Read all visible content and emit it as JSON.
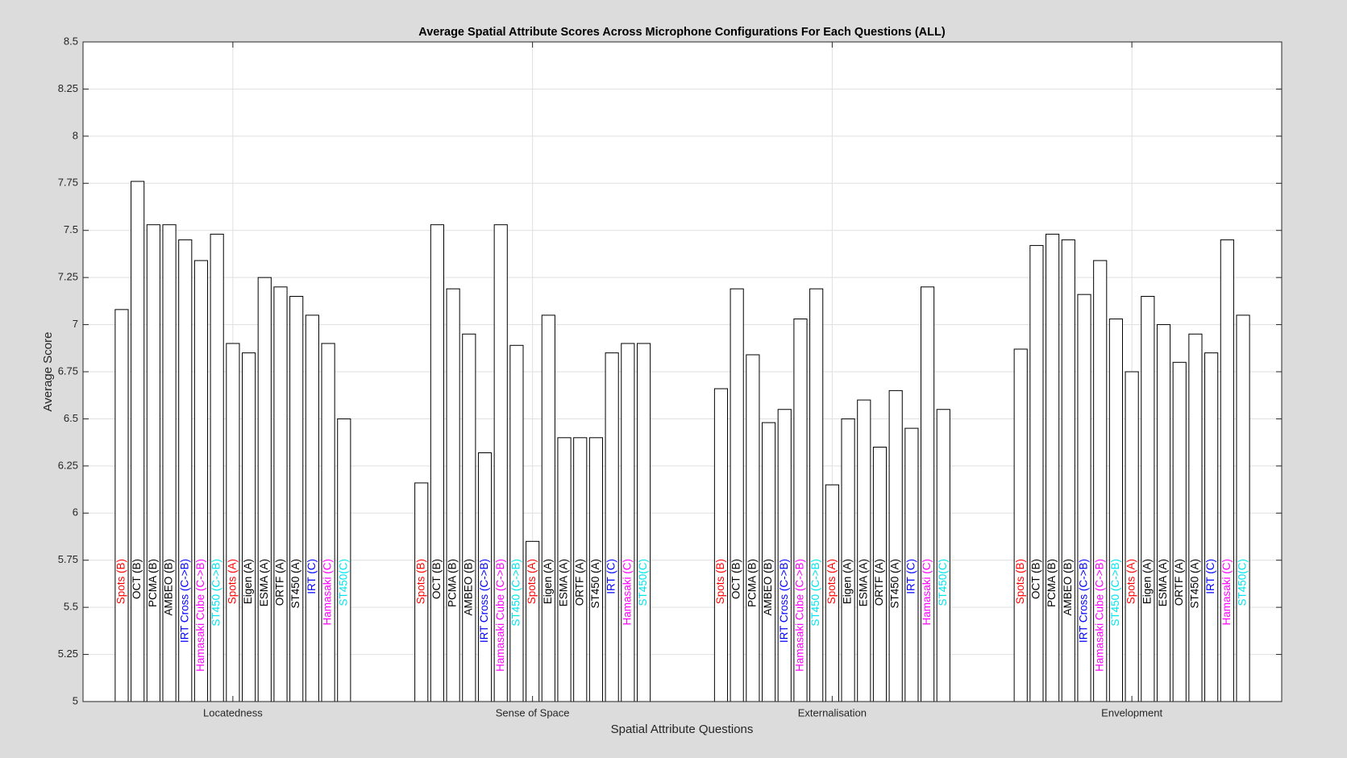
{
  "chart_data": {
    "type": "bar",
    "title": "Average Spatial Attribute Scores Across Microphone Configurations For Each Questions (ALL)",
    "x_label": "Spatial Attribute Questions",
    "y_label": "Average Score",
    "categories": [
      "Locatedness",
      "Sense of Space",
      "Externalisation",
      "Envelopment"
    ],
    "ylim": [
      5,
      8.5
    ],
    "yticks": [
      5,
      5.25,
      5.5,
      5.75,
      6,
      6.25,
      6.5,
      6.75,
      7,
      7.25,
      7.5,
      7.75,
      8,
      8.25,
      8.5
    ],
    "grid": true,
    "series": [
      {
        "name": "Spots (B)",
        "color": "#ff0000",
        "values": [
          7.08,
          6.16,
          6.66,
          6.87
        ]
      },
      {
        "name": "OCT (B)",
        "color": "#000000",
        "values": [
          7.76,
          7.53,
          7.19,
          7.42
        ]
      },
      {
        "name": "PCMA (B)",
        "color": "#000000",
        "values": [
          7.53,
          7.19,
          6.84,
          7.48
        ]
      },
      {
        "name": "AMBEO (B)",
        "color": "#000000",
        "values": [
          7.53,
          6.95,
          6.48,
          7.45
        ]
      },
      {
        "name": "IRT Cross (C->B)",
        "color": "#0000ff",
        "values": [
          7.45,
          6.32,
          6.55,
          7.16
        ]
      },
      {
        "name": "Hamasaki Cube (C->B)",
        "color": "#ff00ff",
        "values": [
          7.34,
          7.53,
          7.03,
          7.34
        ]
      },
      {
        "name": "ST450 (C->B)",
        "color": "#00e5ee",
        "values": [
          7.48,
          6.89,
          7.19,
          7.03
        ]
      },
      {
        "name": "Spots (A)",
        "color": "#ff0000",
        "values": [
          6.9,
          5.85,
          6.15,
          6.75
        ]
      },
      {
        "name": "Eigen (A)",
        "color": "#000000",
        "values": [
          6.85,
          7.05,
          6.5,
          7.15
        ]
      },
      {
        "name": "ESMA (A)",
        "color": "#000000",
        "values": [
          7.25,
          6.4,
          6.6,
          7.0
        ]
      },
      {
        "name": "ORTF (A)",
        "color": "#000000",
        "values": [
          7.2,
          6.4,
          6.35,
          6.8
        ]
      },
      {
        "name": "ST450 (A)",
        "color": "#000000",
        "values": [
          7.15,
          6.4,
          6.65,
          6.95
        ]
      },
      {
        "name": "IRT (C)",
        "color": "#0000ff",
        "values": [
          7.05,
          6.85,
          6.45,
          6.85
        ]
      },
      {
        "name": "Hamasaki (C)",
        "color": "#ff00ff",
        "values": [
          6.9,
          6.9,
          7.2,
          7.45
        ]
      },
      {
        "name": "ST450(C)",
        "color": "#00e5ee",
        "values": [
          6.5,
          6.9,
          6.55,
          7.05
        ]
      }
    ]
  }
}
